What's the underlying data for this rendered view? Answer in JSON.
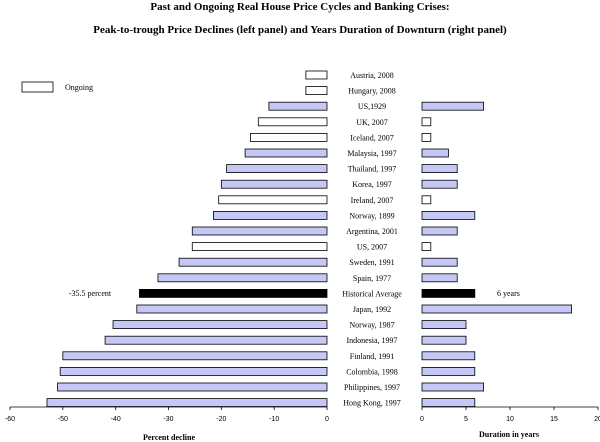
{
  "chart_data": {
    "type": "bar",
    "title": "Past and Ongoing Real House Price Cycles and Banking Crises:",
    "subtitle": "Peak-to-trough Price Declines (left panel) and Years Duration of Downturn (right panel)",
    "legend": {
      "label": "Ongoing",
      "placement": "top-left"
    },
    "categories": [
      "Austria, 2008",
      "Hungary, 2008",
      "US,1929",
      "UK, 2007",
      "Iceland, 2007",
      "Malaysia, 1997",
      "Thailand, 1997",
      "Korea, 1997",
      "Ireland, 2007",
      "Norway, 1899",
      "Argentina, 2001",
      "US, 2007",
      "Sweden, 1991",
      "Spain, 1977",
      "Historical Average",
      "Japan, 1992",
      "Norway, 1987",
      "Indonesia, 1997",
      "Finland, 1991",
      "Colombia, 1998",
      "Philippines, 1997",
      "Hong Kong, 1997"
    ],
    "ongoing": [
      true,
      true,
      false,
      true,
      true,
      false,
      false,
      false,
      true,
      false,
      false,
      true,
      false,
      false,
      false,
      false,
      false,
      false,
      false,
      false,
      false,
      false
    ],
    "series": [
      {
        "panel": "left",
        "values": [
          -4,
          -4,
          -11,
          -13,
          -14.5,
          -15.5,
          -19,
          -20,
          -20.5,
          -21.5,
          -25.5,
          -25.5,
          -28,
          -32,
          -35.5,
          -36,
          -40.5,
          -42,
          -50,
          -50.5,
          -51,
          -53
        ]
      },
      {
        "panel": "right",
        "values": [
          null,
          null,
          7,
          1,
          1,
          3,
          4,
          4,
          1,
          6,
          4,
          1,
          4,
          4,
          6,
          17,
          5,
          5,
          6,
          6,
          7,
          6
        ]
      }
    ],
    "average_labels": {
      "left": "-35.5 percent",
      "right": "6 years"
    },
    "left_axis": {
      "xlabel": "Percent decline",
      "xlim": [
        -60,
        0
      ],
      "ticks": [
        -60,
        -50,
        -40,
        -30,
        -20,
        -10,
        0
      ],
      "tick_labels": [
        "-60",
        "-50",
        "-40",
        "-30",
        "-20",
        "-10",
        "0"
      ]
    },
    "right_axis": {
      "xlabel": "Duration in years",
      "xlim": [
        0,
        20
      ],
      "ticks": [
        0,
        5,
        10,
        15,
        20
      ],
      "tick_labels": [
        "0",
        "5",
        "10",
        "15",
        "20"
      ]
    },
    "grid": false,
    "colors": {
      "bar_fill": "#c5c8f5",
      "ongoing_fill": "#ffffff",
      "average_fill": "#000000",
      "outline": "#000000"
    }
  }
}
